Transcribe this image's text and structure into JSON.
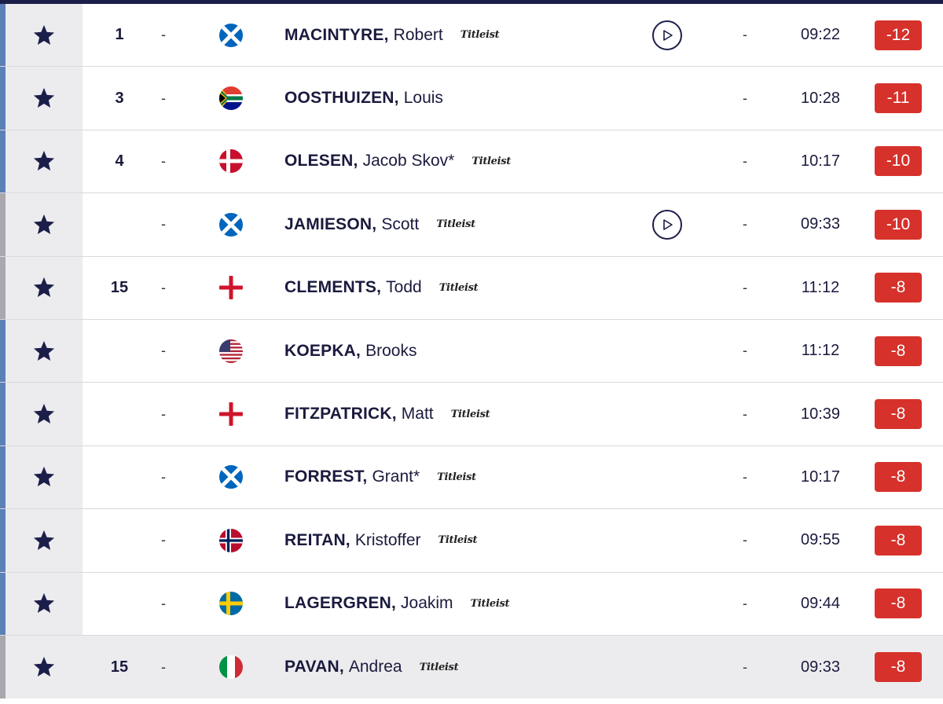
{
  "theme": {
    "header_bar": "#1c1e4a",
    "star_color": "#1c1e4a",
    "score_bg": "#d6312b",
    "accent_blue": "#5c80b8",
    "accent_grey": "#a8a8ae"
  },
  "leaderboard": {
    "rows": [
      {
        "position": "1",
        "movement": "-",
        "flag": "scotland-flag-icon",
        "last_name": "MACINTYRE,",
        "first_name": "Robert",
        "sponsor": "Titleist",
        "video": true,
        "thru": "-",
        "tee_time": "09:22",
        "score": "-12",
        "accent": "blue"
      },
      {
        "position": "3",
        "movement": "-",
        "flag": "south-africa-flag-icon",
        "last_name": "OOSTHUIZEN,",
        "first_name": "Louis",
        "sponsor": "",
        "video": false,
        "thru": "-",
        "tee_time": "10:28",
        "score": "-11",
        "accent": "blue"
      },
      {
        "position": "4",
        "movement": "-",
        "flag": "denmark-flag-icon",
        "last_name": "OLESEN,",
        "first_name": "Jacob Skov*",
        "sponsor": "Titleist",
        "video": false,
        "thru": "-",
        "tee_time": "10:17",
        "score": "-10",
        "accent": "blue"
      },
      {
        "position": "",
        "movement": "-",
        "flag": "scotland-flag-icon",
        "last_name": "JAMIESON,",
        "first_name": "Scott",
        "sponsor": "Titleist",
        "video": true,
        "thru": "-",
        "tee_time": "09:33",
        "score": "-10",
        "accent": "grey"
      },
      {
        "position": "15",
        "movement": "-",
        "flag": "england-flag-icon",
        "last_name": "CLEMENTS,",
        "first_name": "Todd",
        "sponsor": "Titleist",
        "video": false,
        "thru": "-",
        "tee_time": "11:12",
        "score": "-8",
        "accent": "grey"
      },
      {
        "position": "",
        "movement": "-",
        "flag": "usa-flag-icon",
        "last_name": "KOEPKA,",
        "first_name": "Brooks",
        "sponsor": "",
        "video": false,
        "thru": "-",
        "tee_time": "11:12",
        "score": "-8",
        "accent": "blue"
      },
      {
        "position": "",
        "movement": "-",
        "flag": "england-flag-icon",
        "last_name": "FITZPATRICK,",
        "first_name": "Matt",
        "sponsor": "Titleist",
        "video": false,
        "thru": "-",
        "tee_time": "10:39",
        "score": "-8",
        "accent": "blue"
      },
      {
        "position": "",
        "movement": "-",
        "flag": "scotland-flag-icon",
        "last_name": "FORREST,",
        "first_name": "Grant*",
        "sponsor": "Titleist",
        "video": false,
        "thru": "-",
        "tee_time": "10:17",
        "score": "-8",
        "accent": "blue"
      },
      {
        "position": "",
        "movement": "-",
        "flag": "norway-flag-icon",
        "last_name": "REITAN,",
        "first_name": "Kristoffer",
        "sponsor": "Titleist",
        "video": false,
        "thru": "-",
        "tee_time": "09:55",
        "score": "-8",
        "accent": "blue"
      },
      {
        "position": "",
        "movement": "-",
        "flag": "sweden-flag-icon",
        "last_name": "LAGERGREN,",
        "first_name": "Joakim",
        "sponsor": "Titleist",
        "video": false,
        "thru": "-",
        "tee_time": "09:44",
        "score": "-8",
        "accent": "blue"
      },
      {
        "position": "15",
        "movement": "-",
        "flag": "italy-flag-icon",
        "last_name": "PAVAN,",
        "first_name": "Andrea",
        "sponsor": "Titleist",
        "video": false,
        "thru": "-",
        "tee_time": "09:33",
        "score": "-8",
        "accent": "grey"
      }
    ]
  }
}
